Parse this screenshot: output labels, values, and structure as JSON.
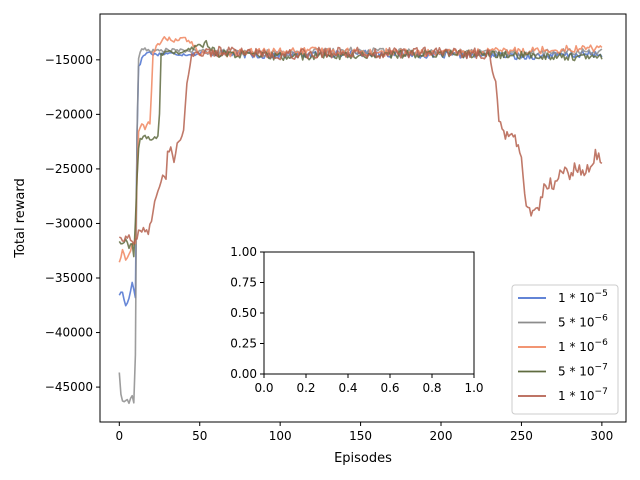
{
  "chart_data": [
    {
      "type": "line",
      "title": "",
      "xlabel": "Episodes",
      "ylabel": "Total reward",
      "xlim": [
        -12,
        315
      ],
      "ylim": [
        -48200,
        -10800
      ],
      "xticks": [
        0,
        50,
        100,
        150,
        200,
        250,
        300
      ],
      "yticks": [
        -45000,
        -40000,
        -35000,
        -30000,
        -25000,
        -20000,
        -15000
      ],
      "grid": false,
      "legend_position": "lower-right",
      "series": [
        {
          "name": "1 * 10^-5",
          "legend_base": "1 * 10",
          "legend_exp": "−5",
          "color": "#4c72d0",
          "points": [
            [
              0,
              -36500
            ],
            [
              2,
              -36300
            ],
            [
              4,
              -37600
            ],
            [
              6,
              -36900
            ],
            [
              8,
              -35300
            ],
            [
              10,
              -36800
            ],
            [
              11,
              -22000
            ],
            [
              12,
              -15500
            ],
            [
              13,
              -15300
            ],
            [
              15,
              -14600
            ],
            [
              18,
              -14300
            ],
            [
              22,
              -14500
            ],
            [
              30,
              -14400
            ],
            [
              40,
              -14500
            ],
            [
              60,
              -14400
            ],
            [
              90,
              -14600
            ],
            [
              120,
              -14500
            ],
            [
              150,
              -14400
            ],
            [
              180,
              -14500
            ],
            [
              200,
              -14600
            ],
            [
              230,
              -14500
            ],
            [
              250,
              -14700
            ],
            [
              270,
              -14600
            ],
            [
              290,
              -14500
            ],
            [
              300,
              -14500
            ]
          ],
          "noise": 300
        },
        {
          "name": "5 * 10^-6",
          "legend_base": "5 * 10",
          "legend_exp": "−6",
          "color": "#8c8c8c",
          "points": [
            [
              0,
              -43600
            ],
            [
              1,
              -45800
            ],
            [
              2,
              -46300
            ],
            [
              4,
              -46100
            ],
            [
              6,
              -46400
            ],
            [
              8,
              -45800
            ],
            [
              9,
              -46400
            ],
            [
              10,
              -42000
            ],
            [
              11,
              -22000
            ],
            [
              12,
              -15000
            ],
            [
              13,
              -14200
            ],
            [
              16,
              -14000
            ],
            [
              20,
              -14200
            ],
            [
              30,
              -14100
            ],
            [
              60,
              -14300
            ],
            [
              100,
              -14400
            ],
            [
              150,
              -14100
            ],
            [
              200,
              -14300
            ],
            [
              250,
              -14400
            ],
            [
              300,
              -14200
            ]
          ],
          "noise": 300
        },
        {
          "name": "1 * 10^-6",
          "legend_base": "1 * 10",
          "legend_exp": "−6",
          "color": "#f0865f",
          "points": [
            [
              0,
              -33500
            ],
            [
              2,
              -32500
            ],
            [
              4,
              -33300
            ],
            [
              6,
              -32900
            ],
            [
              8,
              -32000
            ],
            [
              10,
              -31700
            ],
            [
              11,
              -26000
            ],
            [
              12,
              -21600
            ],
            [
              14,
              -20700
            ],
            [
              16,
              -21300
            ],
            [
              18,
              -20800
            ],
            [
              19,
              -21000
            ],
            [
              20,
              -18000
            ],
            [
              21,
              -14400
            ],
            [
              24,
              -13600
            ],
            [
              28,
              -13000
            ],
            [
              34,
              -13200
            ],
            [
              40,
              -13000
            ],
            [
              46,
              -13600
            ],
            [
              50,
              -14500
            ],
            [
              80,
              -14300
            ],
            [
              120,
              -14200
            ],
            [
              160,
              -14300
            ],
            [
              200,
              -14400
            ],
            [
              240,
              -14200
            ],
            [
              280,
              -14000
            ],
            [
              300,
              -13900
            ]
          ],
          "noise": 350
        },
        {
          "name": "5 * 10^-7",
          "legend_base": "5 * 10",
          "legend_exp": "−7",
          "color": "#5f6b3f",
          "points": [
            [
              0,
              -31600
            ],
            [
              2,
              -32000
            ],
            [
              4,
              -31500
            ],
            [
              6,
              -32200
            ],
            [
              8,
              -31800
            ],
            [
              9,
              -33200
            ],
            [
              10,
              -30000
            ],
            [
              11,
              -26000
            ],
            [
              12,
              -23000
            ],
            [
              13,
              -22200
            ],
            [
              16,
              -22000
            ],
            [
              20,
              -22400
            ],
            [
              24,
              -22000
            ],
            [
              25,
              -20000
            ],
            [
              26,
              -14500
            ],
            [
              30,
              -14200
            ],
            [
              36,
              -14400
            ],
            [
              40,
              -14300
            ],
            [
              54,
              -13400
            ],
            [
              60,
              -14400
            ],
            [
              100,
              -14700
            ],
            [
              150,
              -14600
            ],
            [
              200,
              -14400
            ],
            [
              250,
              -14600
            ],
            [
              300,
              -14800
            ]
          ],
          "noise": 350
        },
        {
          "name": "1 * 10^-7",
          "legend_base": "1 * 10",
          "legend_exp": "−7",
          "color": "#b5614f",
          "points": [
            [
              0,
              -31200
            ],
            [
              3,
              -31500
            ],
            [
              6,
              -31200
            ],
            [
              9,
              -32000
            ],
            [
              12,
              -30800
            ],
            [
              15,
              -30500
            ],
            [
              18,
              -30800
            ],
            [
              20,
              -29800
            ],
            [
              22,
              -28000
            ],
            [
              24,
              -27000
            ],
            [
              27,
              -25600
            ],
            [
              29,
              -25700
            ],
            [
              30,
              -23500
            ],
            [
              32,
              -23200
            ],
            [
              34,
              -24300
            ],
            [
              36,
              -22500
            ],
            [
              38,
              -22200
            ],
            [
              40,
              -21500
            ],
            [
              42,
              -17000
            ],
            [
              45,
              -14600
            ],
            [
              50,
              -14300
            ],
            [
              70,
              -14200
            ],
            [
              100,
              -14500
            ],
            [
              130,
              -14300
            ],
            [
              160,
              -14400
            ],
            [
              190,
              -14300
            ],
            [
              220,
              -14400
            ],
            [
              230,
              -14600
            ],
            [
              234,
              -16800
            ],
            [
              236,
              -20300
            ],
            [
              238,
              -21000
            ],
            [
              240,
              -22000
            ],
            [
              244,
              -21600
            ],
            [
              248,
              -22800
            ],
            [
              250,
              -24300
            ],
            [
              252,
              -27700
            ],
            [
              256,
              -28900
            ],
            [
              258,
              -29100
            ],
            [
              260,
              -28700
            ],
            [
              262,
              -27900
            ],
            [
              264,
              -26800
            ],
            [
              266,
              -26700
            ],
            [
              268,
              -26200
            ],
            [
              270,
              -27200
            ],
            [
              272,
              -25800
            ],
            [
              275,
              -25000
            ],
            [
              280,
              -25700
            ],
            [
              284,
              -24700
            ],
            [
              288,
              -25300
            ],
            [
              292,
              -24900
            ],
            [
              296,
              -23700
            ],
            [
              300,
              -24000
            ]
          ],
          "noise": 500
        }
      ]
    },
    {
      "type": "line",
      "title": "",
      "xlabel": "",
      "ylabel": "",
      "xlim": [
        0,
        1
      ],
      "ylim": [
        0,
        1
      ],
      "xtick_labels": [
        "0.0",
        "0.2",
        "0.4",
        "0.6",
        "0.8",
        "1.0"
      ],
      "ytick_labels": [
        "0.00",
        "0.25",
        "0.50",
        "0.75",
        "1.00"
      ],
      "grid": false,
      "series": []
    }
  ]
}
